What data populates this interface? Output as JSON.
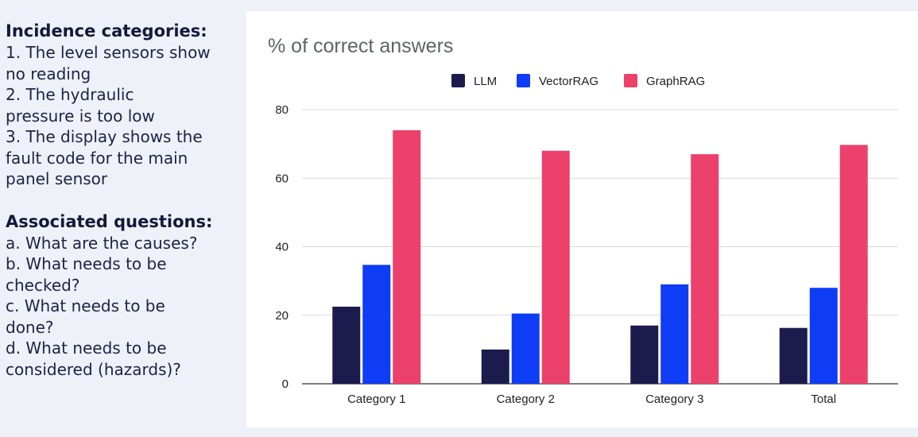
{
  "incidence": {
    "heading": "Incidence categories:",
    "lines": [
      "1. The level sensors show",
      "no reading",
      "2. The hydraulic",
      "pressure is too low",
      "3. The display shows the",
      "fault code for the main",
      "panel sensor"
    ]
  },
  "questions": {
    "heading": "Associated questions:",
    "lines": [
      "a. What are the causes?",
      "b. What needs to be",
      "checked?",
      "c. What needs to be",
      "done?",
      "d. What needs to be",
      "considered (hazards)?"
    ]
  },
  "chart_data": {
    "type": "bar",
    "title": "% of correct answers",
    "categories": [
      "Category 1",
      "Category 2",
      "Category 3",
      "Total"
    ],
    "series": [
      {
        "name": "LLM",
        "color": "#1c1b4d",
        "values": [
          22.5,
          10,
          17,
          16.3
        ]
      },
      {
        "name": "VectorRAG",
        "color": "#0f3cf5",
        "values": [
          34.7,
          20.5,
          29,
          28
        ]
      },
      {
        "name": "GraphRAG",
        "color": "#ec416b",
        "values": [
          74,
          68,
          67,
          69.7
        ]
      }
    ],
    "ylim": [
      0,
      80
    ],
    "yticks": [
      0,
      20,
      40,
      60,
      80
    ],
    "grid": true,
    "legend_position": "top"
  }
}
